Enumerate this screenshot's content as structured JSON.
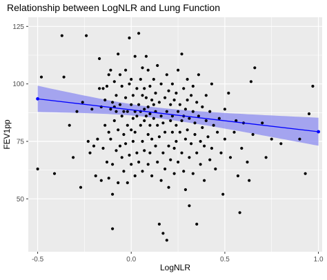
{
  "chart_data": {
    "type": "scatter",
    "title": "Relationship between LogNLR and Lung Function",
    "xlabel": "LogNLR",
    "ylabel": "FEV1pp",
    "xlim": [
      -0.55,
      1.02
    ],
    "ylim": [
      27,
      129
    ],
    "x_ticks": [
      -0.5,
      0.0,
      0.5,
      1.0
    ],
    "x_tick_labels": [
      "-0.5",
      "0.0",
      "0.5",
      "1.0"
    ],
    "y_ticks": [
      50,
      75,
      100,
      125
    ],
    "y_tick_labels": [
      "50",
      "75",
      "100",
      "125"
    ],
    "grid": true,
    "legend": "none",
    "colors": {
      "panel_background": "#ebebeb",
      "grid": "#ffffff",
      "points": "#000000",
      "fit_line": "#0000ff",
      "confidence_band": "#8c8cf0"
    },
    "fit": {
      "method": "linear",
      "x": [
        -0.5,
        1.0
      ],
      "y": [
        93.5,
        79.2
      ],
      "ci_upper": [
        99.2,
        85.3
      ],
      "ci_lower": [
        87.8,
        73.1
      ],
      "ci_center_x": 0.1,
      "ci_center_halfwidth": 2.3
    },
    "series": [
      {
        "points": [
          [
            -0.5,
            63
          ],
          [
            -0.48,
            103
          ],
          [
            -0.41,
            61
          ],
          [
            -0.37,
            121
          ],
          [
            -0.36,
            103
          ],
          [
            -0.33,
            82
          ],
          [
            -0.31,
            68
          ],
          [
            -0.29,
            88
          ],
          [
            -0.27,
            55
          ],
          [
            -0.26,
            92
          ],
          [
            -0.24,
            121
          ],
          [
            -0.23,
            75
          ],
          [
            -0.22,
            70
          ],
          [
            -0.21,
            89
          ],
          [
            -0.2,
            73
          ],
          [
            -0.19,
            60
          ],
          [
            -0.18,
            76
          ],
          [
            -0.17,
            98
          ],
          [
            -0.17,
            111
          ],
          [
            -0.16,
            90
          ],
          [
            -0.16,
            58
          ],
          [
            -0.15,
            98
          ],
          [
            -0.15,
            72
          ],
          [
            -0.14,
            82
          ],
          [
            -0.14,
            93
          ],
          [
            -0.13,
            99
          ],
          [
            -0.13,
            66
          ],
          [
            -0.12,
            79
          ],
          [
            -0.12,
            104
          ],
          [
            -0.12,
            59
          ],
          [
            -0.11,
            106
          ],
          [
            -0.11,
            89
          ],
          [
            -0.11,
            76
          ],
          [
            -0.1,
            65
          ],
          [
            -0.1,
            92
          ],
          [
            -0.1,
            37
          ],
          [
            -0.1,
            52
          ],
          [
            -0.09,
            90
          ],
          [
            -0.09,
            101
          ],
          [
            -0.09,
            84
          ],
          [
            -0.08,
            88
          ],
          [
            -0.08,
            71
          ],
          [
            -0.08,
            95
          ],
          [
            -0.07,
            113
          ],
          [
            -0.07,
            57
          ],
          [
            -0.07,
            80
          ],
          [
            -0.06,
            104
          ],
          [
            -0.06,
            91
          ],
          [
            -0.06,
            73
          ],
          [
            -0.05,
            68
          ],
          [
            -0.05,
            86
          ],
          [
            -0.05,
            99
          ],
          [
            -0.04,
            78
          ],
          [
            -0.04,
            88
          ],
          [
            -0.04,
            62
          ],
          [
            -0.03,
            106
          ],
          [
            -0.03,
            74
          ],
          [
            -0.03,
            94
          ],
          [
            -0.02,
            82
          ],
          [
            -0.02,
            57
          ],
          [
            -0.02,
            88
          ],
          [
            -0.01,
            100
          ],
          [
            -0.01,
            69
          ],
          [
            -0.01,
            120
          ],
          [
            0.0,
            80
          ],
          [
            0.0,
            91
          ],
          [
            0.0,
            102
          ],
          [
            0.0,
            65
          ],
          [
            0.01,
            85
          ],
          [
            0.01,
            75
          ],
          [
            0.01,
            95
          ],
          [
            0.02,
            112
          ],
          [
            0.02,
            60
          ],
          [
            0.02,
            88
          ],
          [
            0.02,
            79
          ],
          [
            0.03,
            98
          ],
          [
            0.03,
            70
          ],
          [
            0.03,
            86
          ],
          [
            0.04,
            122
          ],
          [
            0.04,
            91
          ],
          [
            0.04,
            66
          ],
          [
            0.05,
            82
          ],
          [
            0.05,
            102
          ],
          [
            0.05,
            88
          ],
          [
            0.06,
            75
          ],
          [
            0.06,
            107
          ],
          [
            0.06,
            95
          ],
          [
            0.06,
            62
          ],
          [
            0.07,
            84
          ],
          [
            0.07,
            98
          ],
          [
            0.07,
            89
          ],
          [
            0.07,
            71
          ],
          [
            0.08,
            112
          ],
          [
            0.08,
            86
          ],
          [
            0.08,
            94
          ],
          [
            0.09,
            78
          ],
          [
            0.09,
            65
          ],
          [
            0.09,
            90
          ],
          [
            0.09,
            106
          ],
          [
            0.1,
            82
          ],
          [
            0.1,
            70
          ],
          [
            0.1,
            87
          ],
          [
            0.1,
            99
          ],
          [
            0.11,
            93
          ],
          [
            0.11,
            60
          ],
          [
            0.11,
            76
          ],
          [
            0.12,
            85
          ],
          [
            0.12,
            102
          ],
          [
            0.12,
            91
          ],
          [
            0.13,
            73
          ],
          [
            0.13,
            88
          ],
          [
            0.13,
            96
          ],
          [
            0.14,
            66
          ],
          [
            0.14,
            82
          ],
          [
            0.14,
            108
          ],
          [
            0.15,
            77
          ],
          [
            0.15,
            92
          ],
          [
            0.15,
            39
          ],
          [
            0.16,
            86
          ],
          [
            0.16,
            58
          ],
          [
            0.16,
            100
          ],
          [
            0.17,
            70
          ],
          [
            0.17,
            35
          ],
          [
            0.17,
            83
          ],
          [
            0.18,
            94
          ],
          [
            0.18,
            63
          ],
          [
            0.18,
            79
          ],
          [
            0.19,
            88
          ],
          [
            0.19,
            104
          ],
          [
            0.19,
            32
          ],
          [
            0.2,
            73
          ],
          [
            0.2,
            97
          ],
          [
            0.2,
            55
          ],
          [
            0.21,
            84
          ],
          [
            0.21,
            91
          ],
          [
            0.21,
            67
          ],
          [
            0.22,
            79
          ],
          [
            0.22,
            100
          ],
          [
            0.22,
            86
          ],
          [
            0.23,
            72
          ],
          [
            0.23,
            93
          ],
          [
            0.23,
            61
          ],
          [
            0.24,
            82
          ],
          [
            0.24,
            96
          ],
          [
            0.24,
            75
          ],
          [
            0.25,
            88
          ],
          [
            0.25,
            66
          ],
          [
            0.25,
            106
          ],
          [
            0.26,
            79
          ],
          [
            0.26,
            91
          ],
          [
            0.27,
            70
          ],
          [
            0.27,
            84
          ],
          [
            0.27,
            113
          ],
          [
            0.28,
            98
          ],
          [
            0.28,
            62
          ],
          [
            0.28,
            86
          ],
          [
            0.29,
            76
          ],
          [
            0.29,
            89
          ],
          [
            0.29,
            54
          ],
          [
            0.3,
            93
          ],
          [
            0.3,
            80
          ],
          [
            0.3,
            102
          ],
          [
            0.31,
            68
          ],
          [
            0.31,
            85
          ],
          [
            0.31,
            47
          ],
          [
            0.32,
            95
          ],
          [
            0.32,
            74
          ],
          [
            0.33,
            88
          ],
          [
            0.33,
            61
          ],
          [
            0.33,
            99
          ],
          [
            0.34,
            78
          ],
          [
            0.34,
            83
          ],
          [
            0.35,
            92
          ],
          [
            0.35,
            70
          ],
          [
            0.35,
            39
          ],
          [
            0.36,
            86
          ],
          [
            0.36,
            104
          ],
          [
            0.37,
            75
          ],
          [
            0.37,
            65
          ],
          [
            0.38,
            90
          ],
          [
            0.38,
            81
          ],
          [
            0.39,
            73
          ],
          [
            0.39,
            58
          ],
          [
            0.4,
            95
          ],
          [
            0.4,
            84
          ],
          [
            0.41,
            77
          ],
          [
            0.42,
            67
          ],
          [
            0.42,
            88
          ],
          [
            0.43,
            100
          ],
          [
            0.43,
            72
          ],
          [
            0.44,
            82
          ],
          [
            0.45,
            63
          ],
          [
            0.46,
            79
          ],
          [
            0.47,
            85
          ],
          [
            0.48,
            70
          ],
          [
            0.49,
            52
          ],
          [
            0.5,
            89
          ],
          [
            0.5,
            76
          ],
          [
            0.52,
            96
          ],
          [
            0.53,
            68
          ],
          [
            0.55,
            79
          ],
          [
            0.56,
            84
          ],
          [
            0.57,
            60
          ],
          [
            0.58,
            44
          ],
          [
            0.59,
            72
          ],
          [
            0.6,
            83
          ],
          [
            0.62,
            66
          ],
          [
            0.63,
            58
          ],
          [
            0.64,
            101
          ],
          [
            0.65,
            78
          ],
          [
            0.66,
            107
          ],
          [
            0.7,
            83
          ],
          [
            0.72,
            68
          ],
          [
            0.75,
            76
          ],
          [
            0.8,
            74
          ],
          [
            0.9,
            76
          ],
          [
            0.93,
            61
          ],
          [
            0.95,
            87
          ],
          [
            0.97,
            99
          ]
        ]
      }
    ]
  }
}
